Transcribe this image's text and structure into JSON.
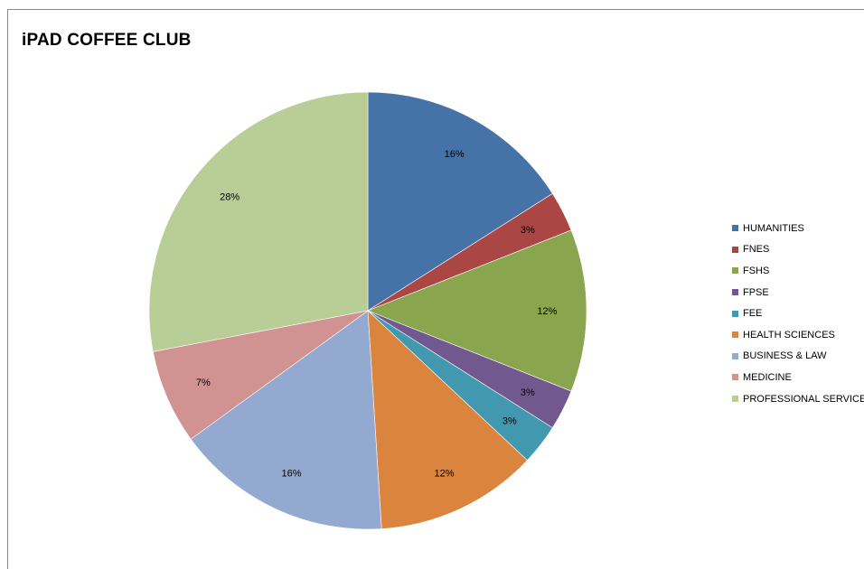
{
  "chart_data": {
    "type": "pie",
    "title": "iPAD COFFEE CLUB",
    "legend_position": "right",
    "slices": [
      {
        "label": "HUMANITIES",
        "value": 16,
        "display": "16%",
        "color": "#4572A7"
      },
      {
        "label": "FNES",
        "value": 3,
        "display": "3%",
        "color": "#AA4643"
      },
      {
        "label": "FSHS",
        "value": 12,
        "display": "12%",
        "color": "#89A54E"
      },
      {
        "label": "FPSE",
        "value": 3,
        "display": "3%",
        "color": "#71588F"
      },
      {
        "label": "FEE",
        "value": 3,
        "display": "3%",
        "color": "#4198AF"
      },
      {
        "label": "HEALTH SCIENCES",
        "value": 12,
        "display": "12%",
        "color": "#DB843D"
      },
      {
        "label": "BUSINESS & LAW",
        "value": 16,
        "display": "16%",
        "color": "#93A9CF"
      },
      {
        "label": "MEDICINE",
        "value": 7,
        "display": "7%",
        "color": "#D19392"
      },
      {
        "label": "PROFESSIONAL SERVICES",
        "value": 28,
        "display": "28%",
        "color": "#B9CD96"
      }
    ]
  }
}
